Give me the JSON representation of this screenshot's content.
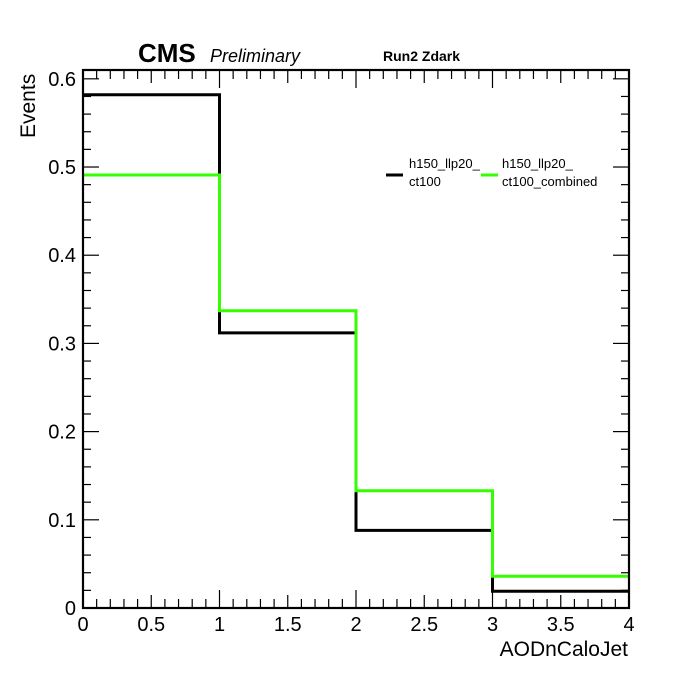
{
  "header": {
    "experiment": "CMS",
    "status": "Preliminary",
    "run_label": "Run2 Zdark"
  },
  "chart_data": {
    "type": "step",
    "xlabel": "AODnCaloJet",
    "ylabel": "Events",
    "xlim": [
      0,
      4
    ],
    "ylim": [
      0,
      0.61
    ],
    "x_ticks": [
      "0",
      "0.5",
      "1",
      "1.5",
      "2",
      "2.5",
      "3",
      "3.5",
      "4"
    ],
    "y_ticks": [
      "0",
      "0.1",
      "0.2",
      "0.3",
      "0.4",
      "0.5",
      "0.6"
    ],
    "bin_edges": [
      0,
      1,
      2,
      3,
      4
    ],
    "series": [
      {
        "name": "h150_llp20_ct100",
        "legend_lines": [
          "h150_llp20_",
          "ct100"
        ],
        "color": "#000000",
        "values": [
          0.582,
          0.312,
          0.088,
          0.019
        ]
      },
      {
        "name": "h150_llp20_ct100_combined",
        "legend_lines": [
          "h150_llp20_",
          "ct100_combined"
        ],
        "color": "#33ff00",
        "values": [
          0.491,
          0.337,
          0.133,
          0.036
        ]
      }
    ],
    "legend_position": "top-right",
    "grid": false
  }
}
